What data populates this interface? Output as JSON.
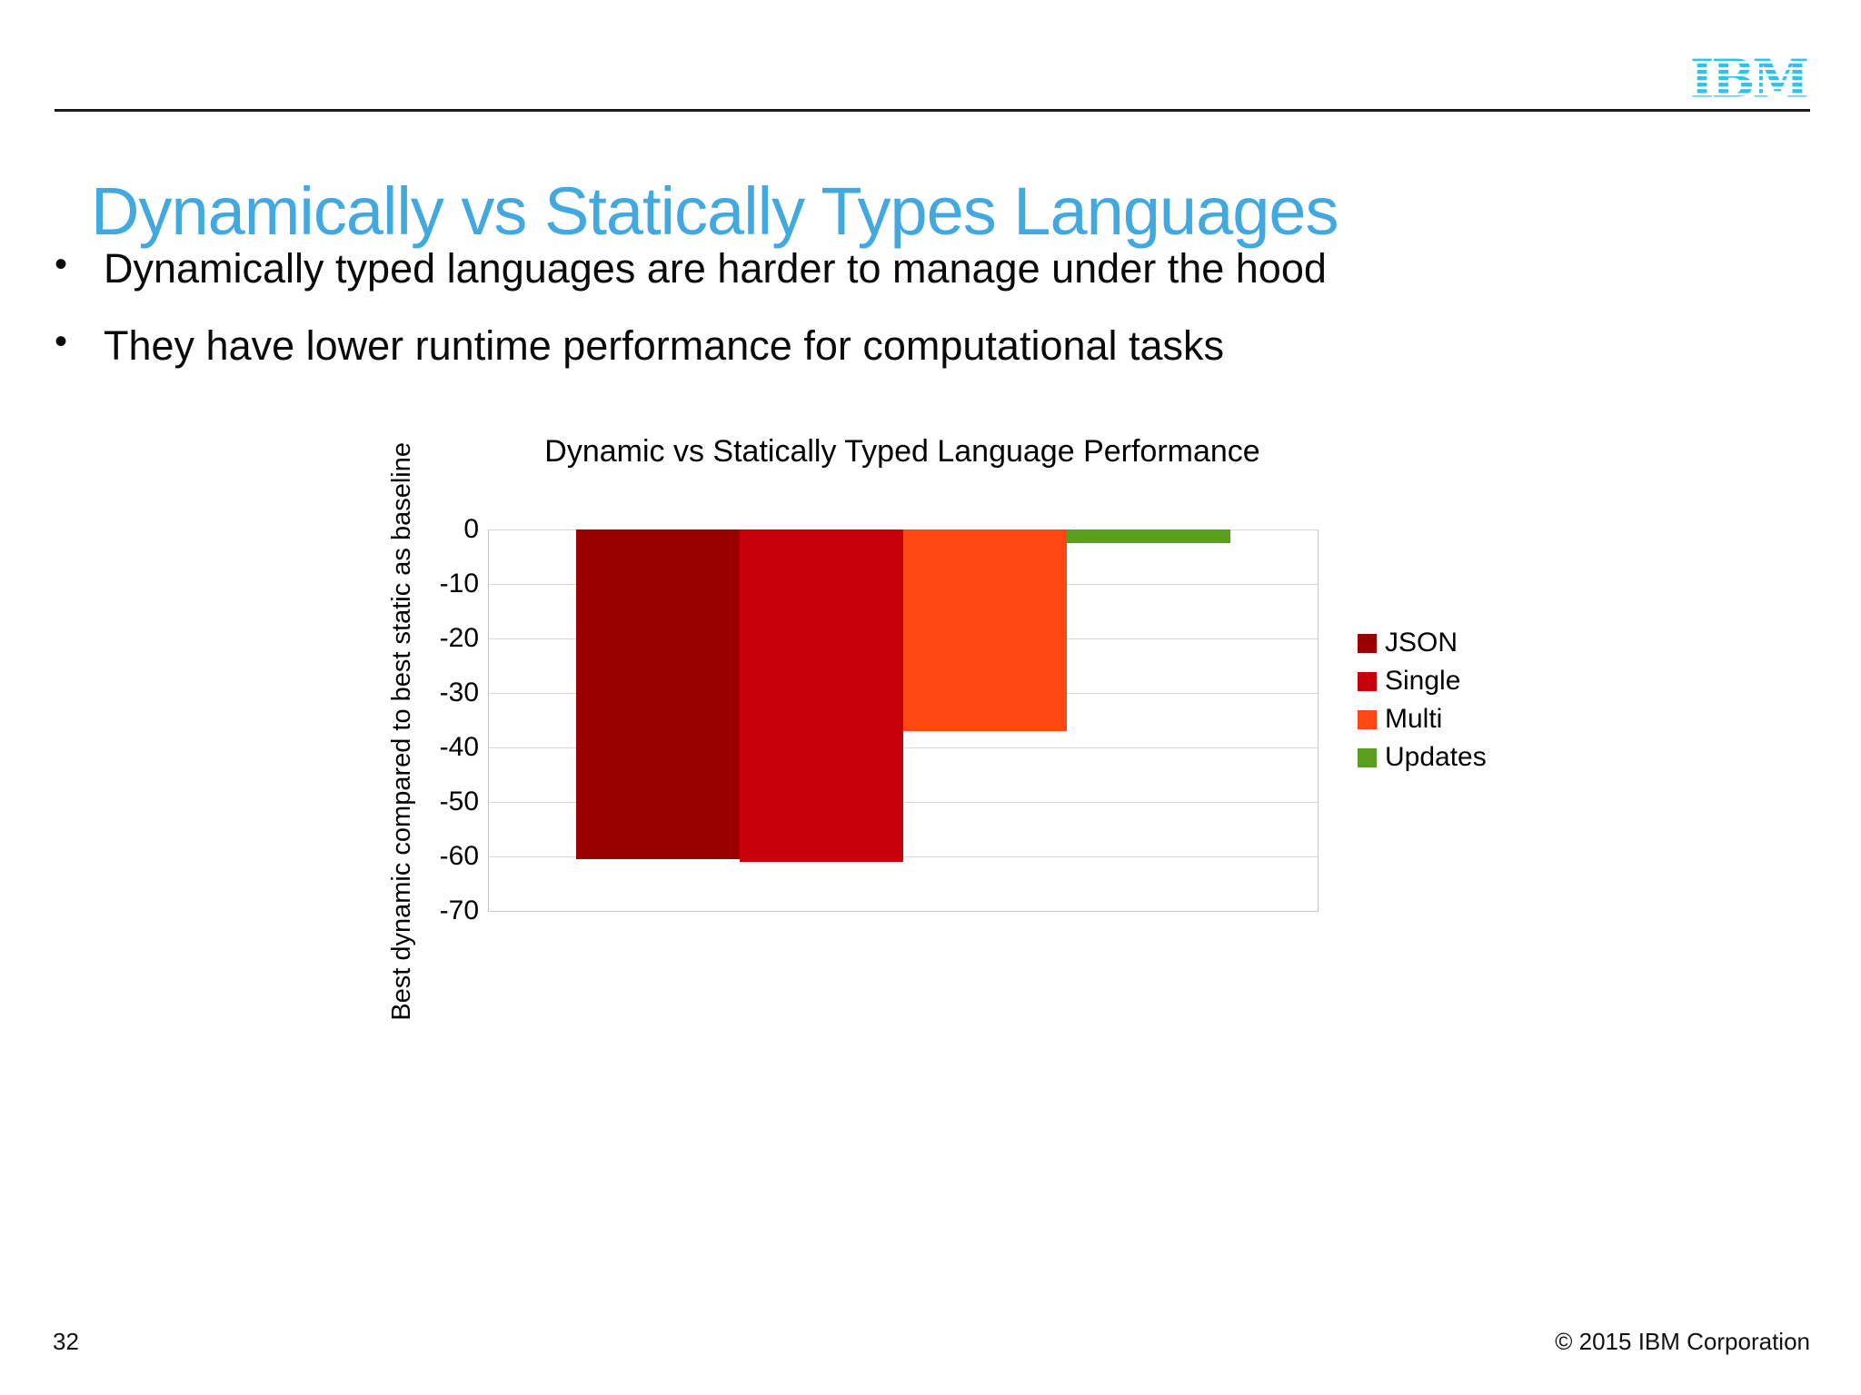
{
  "slide": {
    "title": "Dynamically vs Statically Types Languages",
    "logo_text": "IBM",
    "bullets": [
      "Dynamically typed languages are harder to manage under the hood",
      "They have lower runtime performance for computational tasks"
    ],
    "page_number": "32",
    "copyright": "© 2015 IBM Corporation"
  },
  "colors": {
    "title_blue": "#41a8e0",
    "logo_cyan": "#2fc1ef",
    "gridline": "#d9d9d9"
  },
  "chart_data": {
    "type": "bar",
    "title": "Dynamic vs Statically Typed Language Performance",
    "xlabel": "",
    "ylabel": "Best dynamic compared to best static as baseline",
    "categories": [
      ""
    ],
    "series": [
      {
        "name": "JSON",
        "values": [
          -60.5
        ],
        "color": "#9a0000"
      },
      {
        "name": "Single",
        "values": [
          -61
        ],
        "color": "#c7000b"
      },
      {
        "name": "Multi",
        "values": [
          -37
        ],
        "color": "#ff4713"
      },
      {
        "name": "Updates",
        "values": [
          -2.5
        ],
        "color": "#5a9e1e"
      }
    ],
    "ylim": [
      -70,
      0
    ],
    "ytick_step": 10,
    "grid": true,
    "legend_position": "right"
  }
}
